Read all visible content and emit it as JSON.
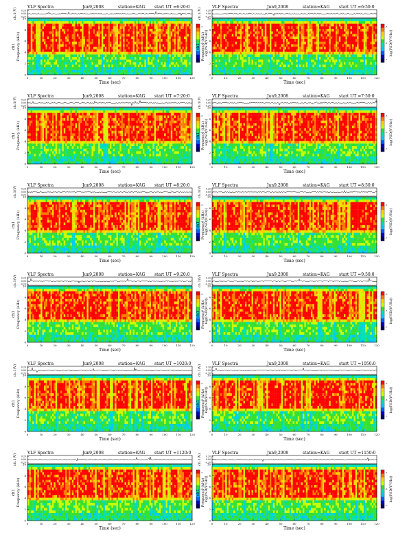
{
  "chart_data": {
    "type": "heatmap",
    "common": {
      "title_prefix": "VLF Spectra",
      "station": "station=KAG",
      "ut_label": "start  UT =",
      "xlabel": "Time  (sec)",
      "xlim": [
        0,
        120
      ],
      "x_ticks": [
        "0",
        "10",
        "20",
        "30",
        "40",
        "50",
        "60",
        "70",
        "80",
        "90",
        "100",
        "110",
        "120"
      ],
      "ch_ylabel": "ch.1(V)",
      "ch_ticks": [
        "0.20",
        "0.00",
        "-0.20"
      ],
      "ch_ylim": [
        -0.2,
        0.2
      ],
      "freq_ylabel_ch": "ch1",
      "freq_ylabel": "Frequency  (kHz)",
      "ylim": [
        0,
        10
      ],
      "y_ticks": [
        "0",
        "2",
        "4",
        "6",
        "8",
        "10"
      ],
      "colorbar_label": "log(PSD(V²/Hz))",
      "colorbar_ticks": [
        "-5",
        "-6",
        "-7"
      ],
      "colorbar_colors": [
        "#ff0000",
        "#ff7a00",
        "#ffd200",
        "#c8ff00",
        "#33e033",
        "#00e0b0",
        "#00c8ff",
        "#0060ff",
        "#0000c0",
        "#000060"
      ],
      "structure": "Broadband VLF noise: green/cyan below ~4.5 kHz, intense red/orange band ~4.5–9.5 kHz, cyan above ~9.5 kHz, frequent vertical spectral dropouts (sferics)"
    },
    "panels": [
      {
        "date": "Jun9,2008",
        "start_time": "6:20:0"
      },
      {
        "date": "Jun9,2008",
        "start_time": "6:50:0"
      },
      {
        "date": "Jun9,2008",
        "start_time": "7:20:0"
      },
      {
        "date": "Jun9,2008",
        "start_time": "7:50:0"
      },
      {
        "date": "Jun9,2008",
        "start_time": "8:20:0"
      },
      {
        "date": "Jun9,2008",
        "start_time": "8:50:0"
      },
      {
        "date": "Jun9,2008",
        "start_time": "9:20:0"
      },
      {
        "date": "Jun9,2008",
        "start_time": "9:50:0"
      },
      {
        "date": "Jun9,2008",
        "start_time": "1020:0"
      },
      {
        "date": "Jun9,2008",
        "start_time": "1050:0"
      },
      {
        "date": "Jun9,2008",
        "start_time": "1120:0"
      },
      {
        "date": "Jun9,2008",
        "start_time": "1150:0"
      }
    ]
  }
}
